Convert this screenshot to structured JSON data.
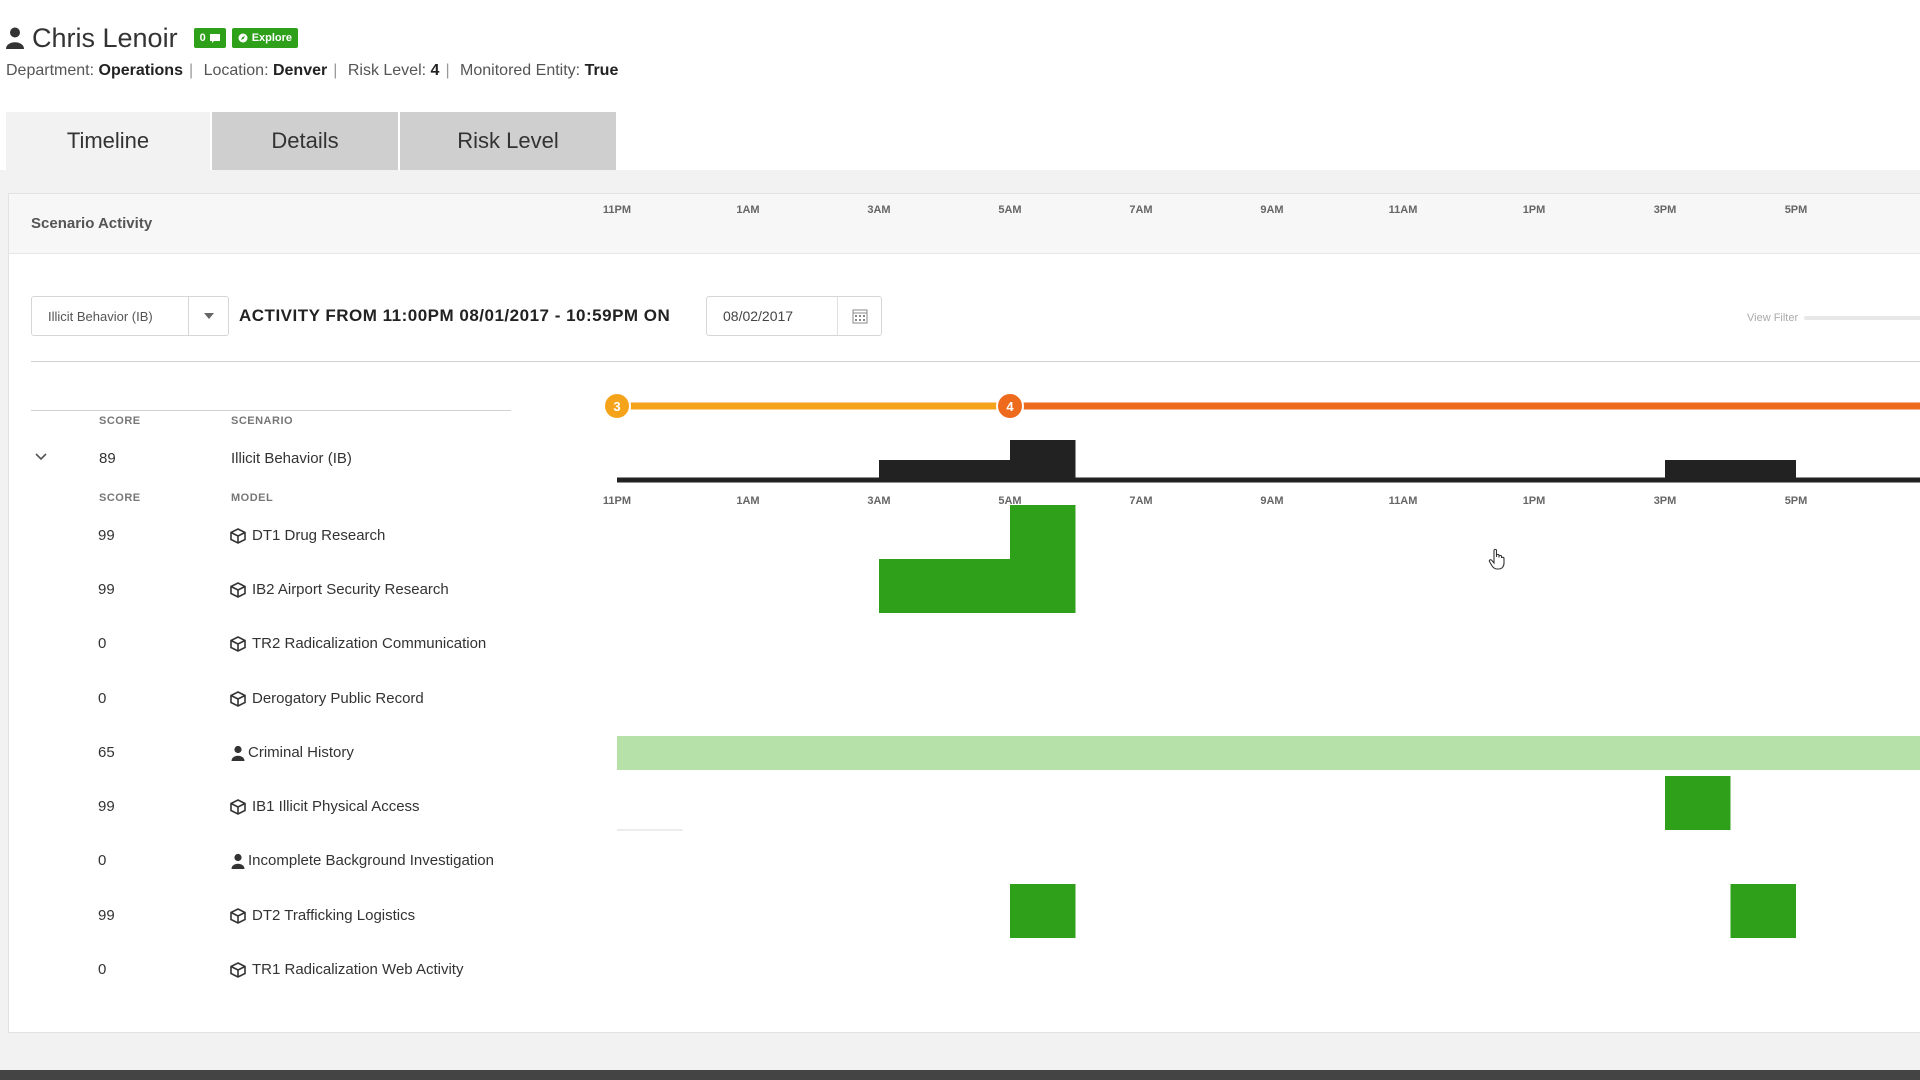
{
  "user": {
    "name": "Chris Lenoir",
    "badge_count": "0",
    "explore_label": "Explore",
    "department_label": "Department:",
    "department": "Operations",
    "location_label": "Location:",
    "location": "Denver",
    "risk_label": "Risk Level:",
    "risk": "4",
    "monitored_label": "Monitored Entity:",
    "monitored": "True"
  },
  "tabs": [
    {
      "label": "Timeline",
      "active": true
    },
    {
      "label": "Details",
      "active": false
    },
    {
      "label": "Risk Level",
      "active": false
    }
  ],
  "panel": {
    "title": "Scenario Activity",
    "filter_value": "Illicit Behavior (IB)",
    "activity_text": "ACTIVITY FROM 11:00PM 08/01/2017 - 10:59PM ON",
    "date_value": "08/02/2017",
    "view_filter": "View Filter"
  },
  "columns": {
    "score": "SCORE",
    "scenario": "SCENARIO",
    "model": "MODEL"
  },
  "scenario": {
    "score": "89",
    "name": "Illicit Behavior (IB)"
  },
  "models": [
    {
      "score": "99",
      "name": "DT1 Drug Research",
      "icon": "cube-icon"
    },
    {
      "score": "99",
      "name": "IB2 Airport Security Research",
      "icon": "cube-icon"
    },
    {
      "score": "0",
      "name": "TR2 Radicalization Communication",
      "icon": "cube-icon"
    },
    {
      "score": "0",
      "name": "Derogatory Public Record",
      "icon": "cube-icon"
    },
    {
      "score": "65",
      "name": "Criminal History",
      "icon": "person-icon"
    },
    {
      "score": "99",
      "name": "IB1 Illicit Physical Access",
      "icon": "cube-icon"
    },
    {
      "score": "0",
      "name": "Incomplete Background Investigation",
      "icon": "person-icon"
    },
    {
      "score": "99",
      "name": "DT2 Trafficking Logistics",
      "icon": "cube-icon"
    },
    {
      "score": "0",
      "name": "TR1 Radicalization Web Activity",
      "icon": "cube-icon"
    }
  ],
  "colors": {
    "accent_green": "#2ea01a",
    "light_green": "#b6e1a8",
    "risk_orange": "#f5a31a",
    "risk_red": "#ee6a1c",
    "dark_bar": "#222222"
  },
  "chart_data": {
    "type": "timeline",
    "ticks": [
      "11PM",
      "1AM",
      "3AM",
      "5AM",
      "7AM",
      "9AM",
      "11AM",
      "1PM",
      "3PM",
      "5PM"
    ],
    "risk_markers": [
      {
        "hour": 23,
        "label": "3",
        "color": "#f5a31a"
      },
      {
        "hour": 5,
        "label": "4",
        "color": "#ee6a1c"
      }
    ],
    "scenario_bars": [
      {
        "hour": 3,
        "level": 0.5
      },
      {
        "hour": 4,
        "level": 0.5
      },
      {
        "hour": 5,
        "level": 1
      },
      {
        "hour": 15,
        "level": 0.5
      },
      {
        "hour": 16,
        "level": 0.5
      }
    ],
    "model_bars": [
      {
        "model": "DT1 Drug Research",
        "hour": 5
      },
      {
        "model": "IB2 Airport Security Research",
        "hour": 3
      },
      {
        "model": "IB2 Airport Security Research",
        "hour": 4
      },
      {
        "model": "IB2 Airport Security Research",
        "hour": 5
      },
      {
        "model": "IB1 Illicit Physical Access",
        "hour": 15
      },
      {
        "model": "DT2 Trafficking Logistics",
        "hour": 5
      },
      {
        "model": "DT2 Trafficking Logistics",
        "hour": 16
      }
    ],
    "continuous": [
      {
        "model": "Criminal History",
        "from_hour": 23,
        "to_hour": 22
      }
    ]
  }
}
